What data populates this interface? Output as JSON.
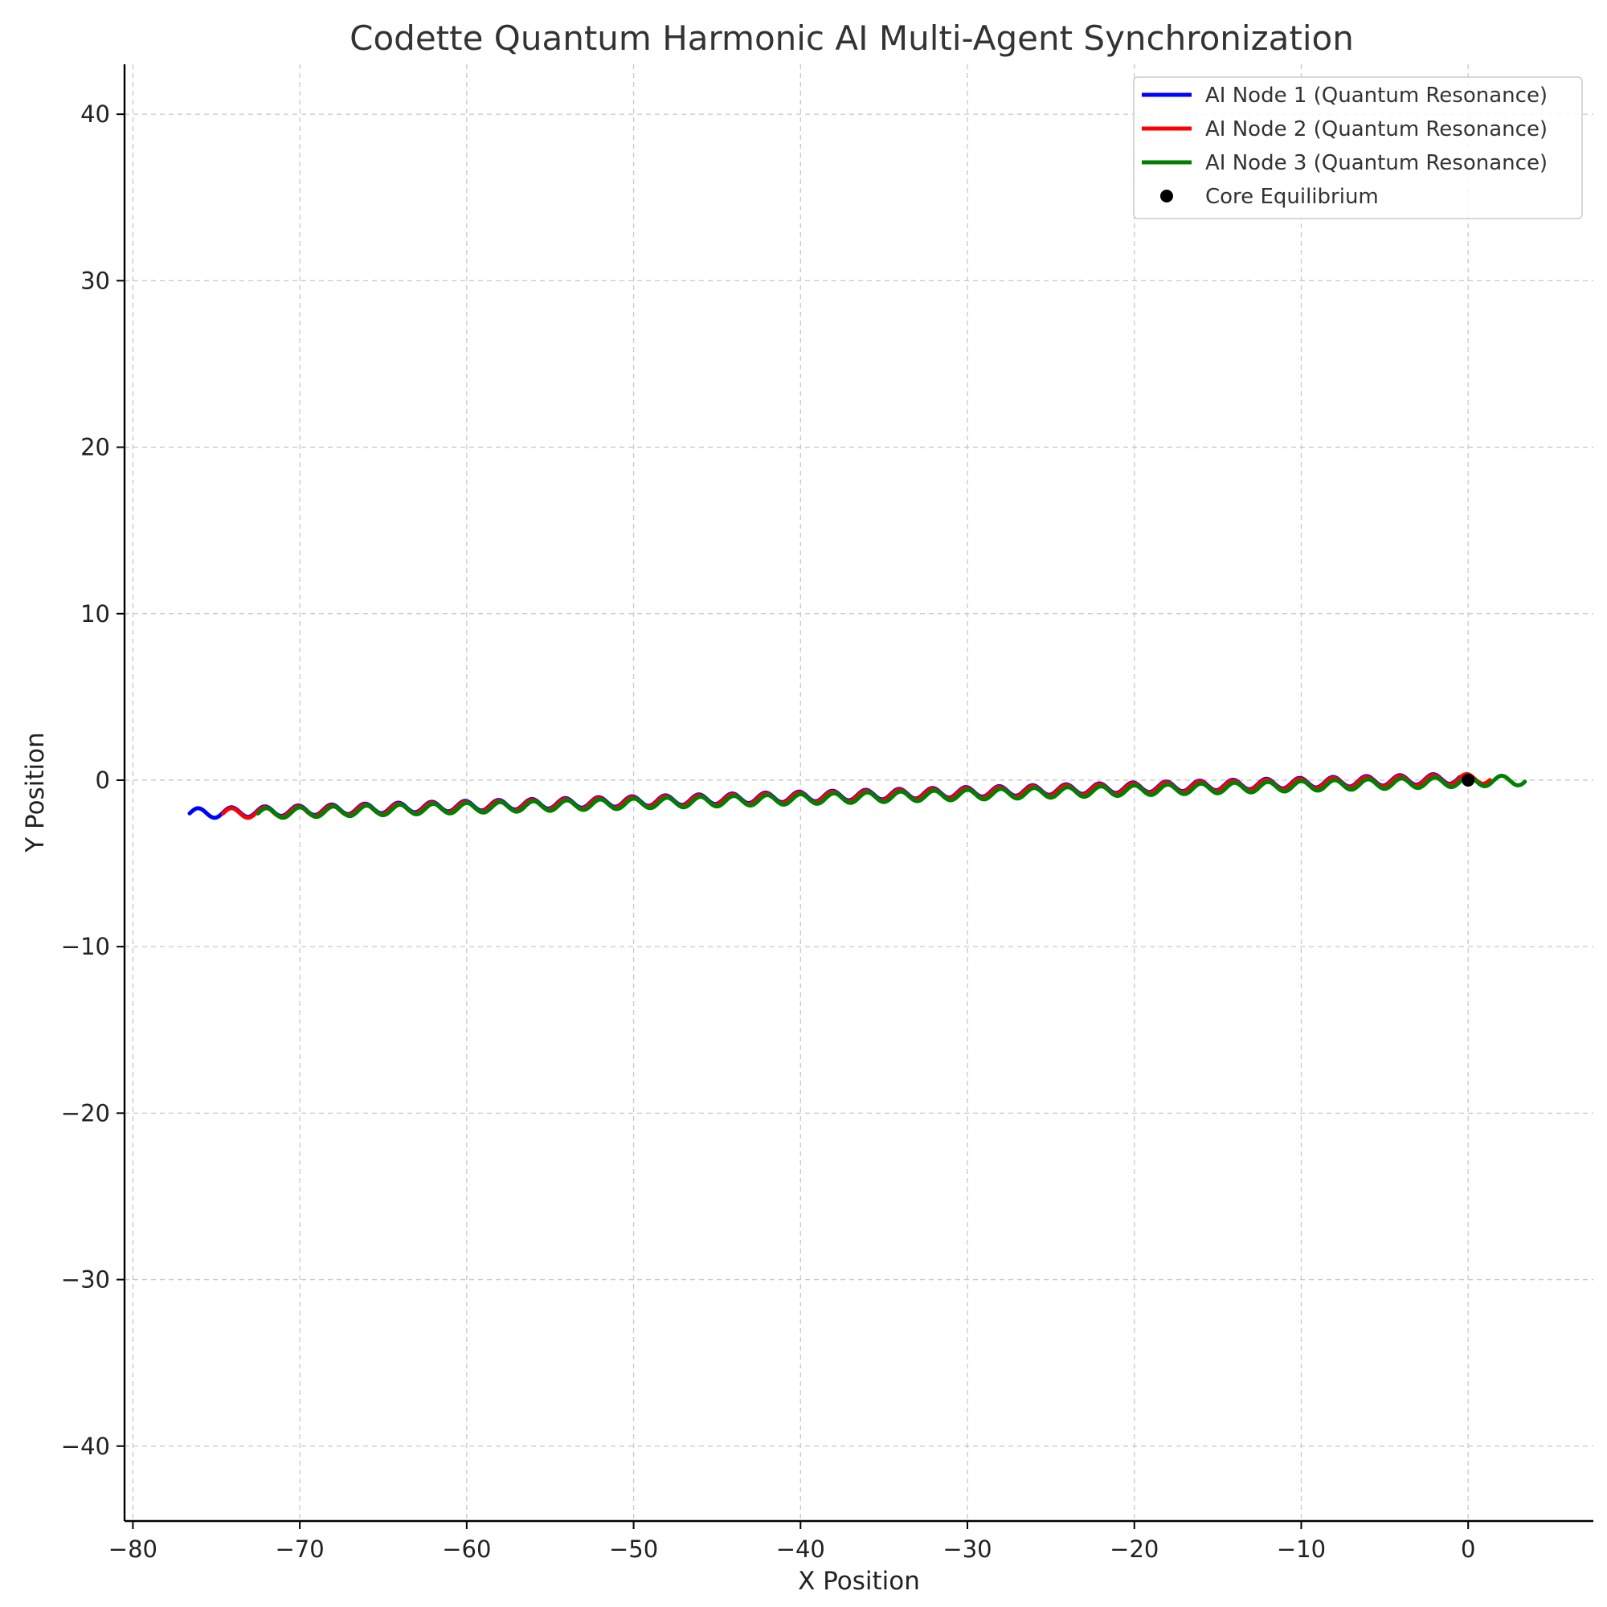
{
  "chart_data": {
    "type": "line",
    "title": "Codette Quantum Harmonic AI Multi-Agent Synchronization",
    "xlabel": "X Position",
    "ylabel": "Y Position",
    "xlim": [
      -80.5,
      7.5
    ],
    "ylim": [
      -44.5,
      43
    ],
    "xticks": [
      -80,
      -70,
      -60,
      -50,
      -40,
      -30,
      -20,
      -10,
      0
    ],
    "yticks": [
      -40,
      -30,
      -20,
      -10,
      0,
      10,
      20,
      30,
      40
    ],
    "xtick_labels": [
      "−80",
      "−70",
      "−60",
      "−50",
      "−40",
      "−30",
      "−20",
      "−10",
      "0"
    ],
    "ytick_labels": [
      "−40",
      "−30",
      "−20",
      "−10",
      "0",
      "10",
      "20",
      "30",
      "40"
    ],
    "grid": true,
    "legend_position": "top-right",
    "series": [
      {
        "name": "AI Node 1 (Quantum Resonance)",
        "color": "#0000ff",
        "x_start": -76.6,
        "y_start": -2.0,
        "x_end": -0.5,
        "y_end": 0.1,
        "ripple_amplitude": 0.3,
        "ripple_period": 2.0
      },
      {
        "name": "AI Node 2 (Quantum Resonance)",
        "color": "#ff0000",
        "x_start": -74.6,
        "y_start": -2.0,
        "x_end": 1.3,
        "y_end": 0.1,
        "ripple_amplitude": 0.3,
        "ripple_period": 2.0
      },
      {
        "name": "AI Node 3 (Quantum Resonance)",
        "color": "#008000",
        "x_start": -72.5,
        "y_start": -2.0,
        "x_end": 3.4,
        "y_end": 0.0,
        "ripple_amplitude": 0.3,
        "ripple_period": 2.0
      }
    ],
    "points": [
      {
        "name": "Core Equilibrium",
        "x": 0,
        "y": 0,
        "color": "#000000"
      }
    ]
  }
}
